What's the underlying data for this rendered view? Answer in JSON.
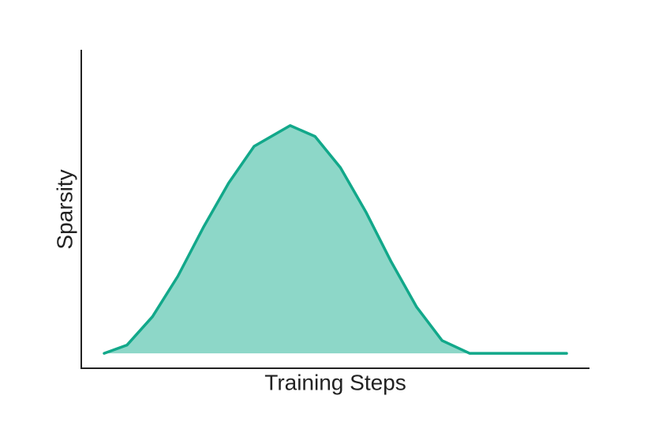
{
  "chart_data": {
    "type": "area",
    "xlabel": "Training Steps",
    "ylabel": "Sparsity",
    "x": [
      0.045,
      0.09,
      0.14,
      0.19,
      0.24,
      0.29,
      0.34,
      0.411,
      0.46,
      0.51,
      0.56,
      0.61,
      0.66,
      0.71,
      0.764,
      0.85,
      0.955
    ],
    "values": [
      0.047,
      0.073,
      0.162,
      0.289,
      0.442,
      0.582,
      0.697,
      0.762,
      0.728,
      0.63,
      0.491,
      0.334,
      0.192,
      0.087,
      0.047,
      0.047,
      0.047
    ],
    "color": "#12a88a",
    "fill_color": "#8dd7c8",
    "xlim": [
      0,
      1
    ],
    "ylim": [
      0,
      1
    ]
  }
}
